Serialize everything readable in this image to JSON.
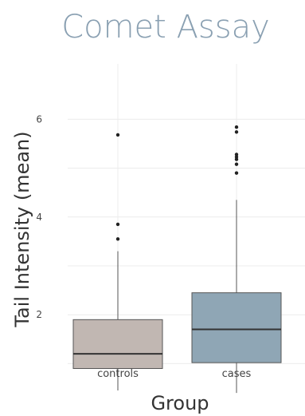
{
  "chart_data": {
    "type": "box",
    "title": "Comet Assay",
    "xlabel": "Group",
    "ylabel": "Tail Intensity (mean)",
    "ylim": [
      0.35,
      6.2
    ],
    "y_ticks": [
      2,
      4,
      6
    ],
    "grid": true,
    "categories": [
      "controls",
      "cases"
    ],
    "boxes": [
      {
        "category": "controls",
        "lower_whisker": 0.45,
        "q1": 0.9,
        "median": 1.2,
        "q3": 1.9,
        "upper_whisker": 3.3,
        "outliers": [
          3.55,
          3.85,
          5.68
        ],
        "fill": "#c1b7b2"
      },
      {
        "category": "cases",
        "lower_whisker": 0.4,
        "q1": 1.02,
        "median": 1.7,
        "q3": 2.45,
        "upper_whisker": 4.35,
        "outliers": [
          4.9,
          5.08,
          5.18,
          5.23,
          5.28,
          5.74,
          5.84
        ],
        "fill": "#8fa6b5"
      }
    ]
  },
  "colors": {
    "title": "#8aa0b2",
    "axis_title": "#333333",
    "tick_label": "#444444",
    "grid": "#ececec",
    "box_line": "#555555",
    "median": "#333333",
    "outlier": "#222222"
  }
}
